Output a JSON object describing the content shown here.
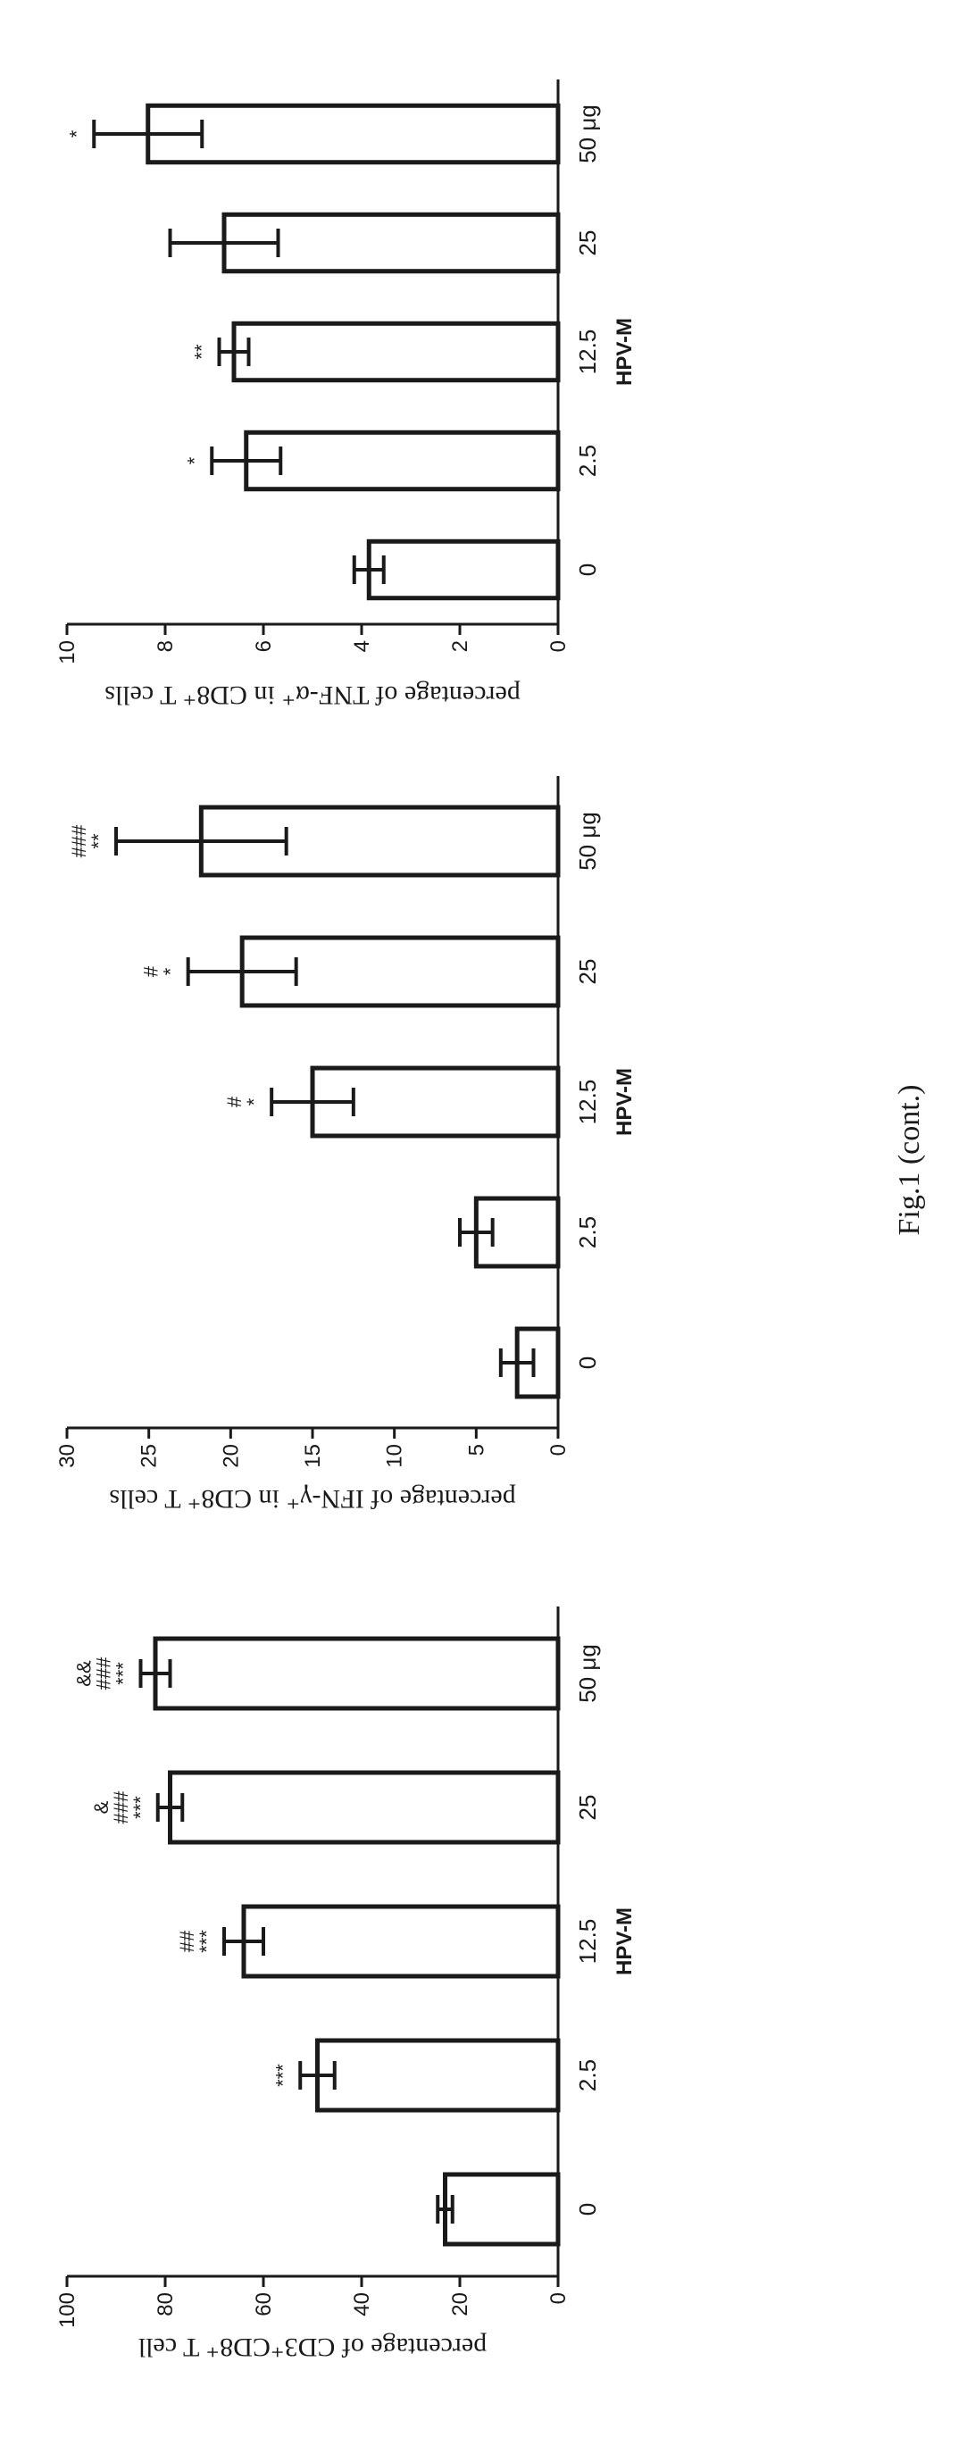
{
  "figure": {
    "caption": "Fig.1 (cont.)"
  },
  "chart_data": [
    {
      "type": "bar",
      "title": "",
      "xlabel": "HPV-M",
      "ylabel": "percentage of CD3⁺CD8⁺ T cell",
      "categories": [
        "0",
        "2.5",
        "12.5",
        "25",
        "50 μg"
      ],
      "values": [
        23,
        49,
        64,
        79,
        82
      ],
      "errors": [
        1.5,
        3.5,
        4,
        2.5,
        3
      ],
      "ylim": [
        0,
        100
      ],
      "yticks": [
        "0",
        "20",
        "40",
        "60",
        "80",
        "100"
      ],
      "annotations": [
        [],
        [
          "***"
        ],
        [
          "***",
          "##"
        ],
        [
          "***",
          "###",
          "&"
        ],
        [
          "***",
          "###",
          "&&"
        ]
      ]
    },
    {
      "type": "bar",
      "title": "",
      "xlabel": "HPV-M",
      "ylabel": "percentage of IFN-γ⁺ in CD8⁺ T cells",
      "categories": [
        "0",
        "2.5",
        "12.5",
        "25",
        "50 μg"
      ],
      "values": [
        2.5,
        5.0,
        15.0,
        19.3,
        21.8
      ],
      "errors": [
        1.0,
        1.0,
        2.5,
        3.3,
        5.2
      ],
      "ylim": [
        0,
        30
      ],
      "yticks": [
        "0",
        "5",
        "10",
        "15",
        "20",
        "25",
        "30"
      ],
      "annotations": [
        [],
        [],
        [
          "*",
          "#"
        ],
        [
          "*",
          "#"
        ],
        [
          "**",
          "###"
        ]
      ]
    },
    {
      "type": "bar",
      "title": "",
      "xlabel": "HPV-M",
      "ylabel": "percentage of TNF-α⁺ in CD8⁺ T cells",
      "categories": [
        "0",
        "2.5",
        "12.5",
        "25",
        "50 μg"
      ],
      "values": [
        3.85,
        6.35,
        6.6,
        6.8,
        8.35
      ],
      "errors": [
        0.3,
        0.7,
        0.3,
        1.1,
        1.1
      ],
      "ylim": [
        0,
        10
      ],
      "yticks": [
        "0",
        "2",
        "4",
        "6",
        "8",
        "10"
      ],
      "annotations": [
        [],
        [
          "*"
        ],
        [
          "**"
        ],
        [],
        [
          "*"
        ]
      ]
    }
  ]
}
